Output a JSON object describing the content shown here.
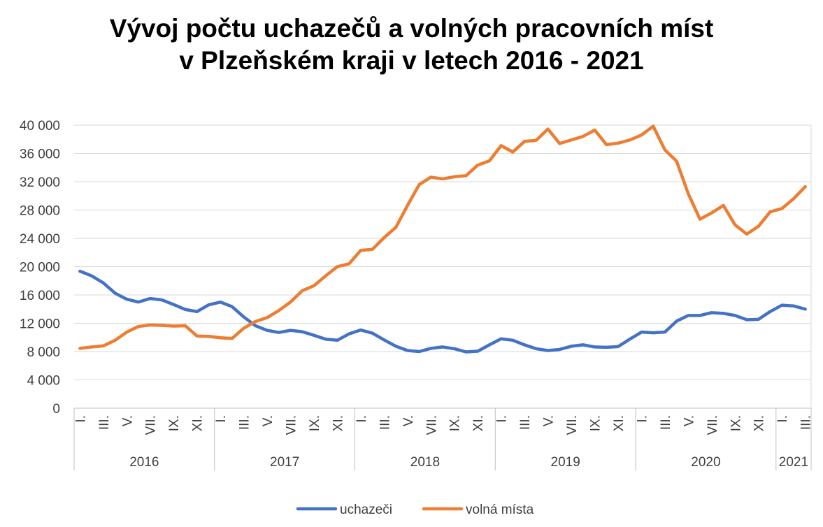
{
  "chart_data": {
    "type": "line",
    "title_lines": [
      "Vývoj počtu uchazečů a volných pracovních míst",
      "v Plzeňském kraji v letech 2016 - 2021"
    ],
    "xlabel": "",
    "ylabel": "",
    "ylim": [
      0,
      40000
    ],
    "yticks": [
      0,
      4000,
      8000,
      12000,
      16000,
      20000,
      24000,
      28000,
      32000,
      36000,
      40000
    ],
    "ytick_labels": [
      "0",
      "4 000",
      "8 000",
      "12 000",
      "16 000",
      "20 000",
      "24 000",
      "28 000",
      "32 000",
      "36 000",
      "40 000"
    ],
    "grid": true,
    "legend_position": "bottom",
    "month_tick_labels": [
      "I.",
      "III.",
      "V.",
      "VII.",
      "IX.",
      "XI."
    ],
    "years": [
      {
        "label": "2016",
        "months": 12
      },
      {
        "label": "2017",
        "months": 12
      },
      {
        "label": "2018",
        "months": 12
      },
      {
        "label": "2019",
        "months": 12
      },
      {
        "label": "2020",
        "months": 12
      },
      {
        "label": "2021",
        "months": 3
      }
    ],
    "series": [
      {
        "name": "uchazeči",
        "color": "#4472C4",
        "values": [
          19350,
          18700,
          17700,
          16250,
          15400,
          15000,
          15500,
          15300,
          14650,
          13950,
          13650,
          14600,
          15000,
          14350,
          12900,
          11650,
          11000,
          10700,
          11000,
          10800,
          10300,
          9750,
          9600,
          10500,
          11050,
          10600,
          9650,
          8750,
          8150,
          8000,
          8450,
          8650,
          8400,
          7950,
          8050,
          8950,
          9800,
          9600,
          8950,
          8400,
          8150,
          8300,
          8750,
          8950,
          8650,
          8600,
          8700,
          9750,
          10750,
          10650,
          10750,
          12300,
          13100,
          13100,
          13500,
          13400,
          13100,
          12500,
          12550,
          13650,
          14550,
          14450,
          14000
        ]
      },
      {
        "name": "volná místa",
        "color": "#ED7D31",
        "values": [
          8450,
          8650,
          8800,
          9600,
          10750,
          11550,
          11750,
          11700,
          11600,
          11650,
          10200,
          10150,
          9950,
          9850,
          11300,
          12250,
          12800,
          13800,
          15000,
          16600,
          17300,
          18700,
          20000,
          20400,
          22300,
          22450,
          24100,
          25550,
          28650,
          31600,
          32650,
          32400,
          32700,
          32850,
          34350,
          34950,
          37100,
          36200,
          37700,
          37850,
          39450,
          37400,
          37900,
          38400,
          39300,
          37250,
          37450,
          37900,
          38600,
          39850,
          36500,
          34900,
          30300,
          26700,
          27600,
          28650,
          25900,
          24600,
          25700,
          27750,
          28200,
          29600,
          31300
        ]
      }
    ]
  }
}
